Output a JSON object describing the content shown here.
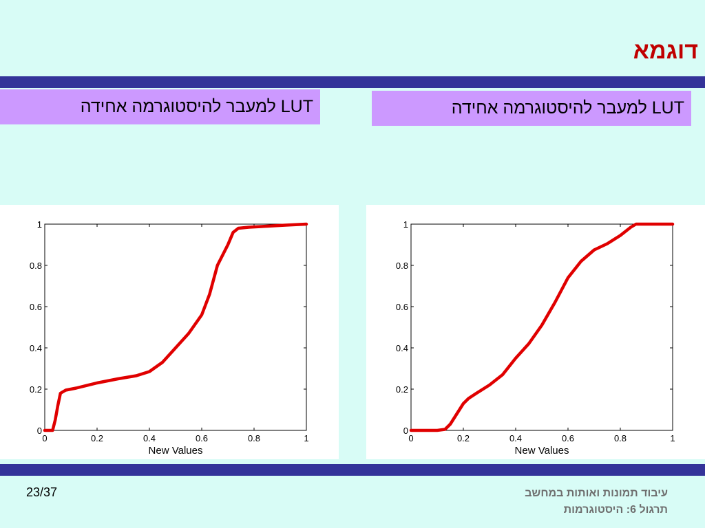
{
  "slide": {
    "title": "דוגמא",
    "page_number": "23/37",
    "footer_line1": "עיבוד תמונות ואותות במחשב",
    "footer_line2": "תרגול 6: היסטוגרמות"
  },
  "labels": {
    "left": "LUT למעבר להיסטוגרמה אחידה",
    "right": "LUT למעבר להיסטוגרמה אחידה"
  },
  "colors": {
    "background": "#d8fcf6",
    "bars": "#333399",
    "title": "#c00000",
    "label_box": "#cc99ff",
    "curve": "#e00000"
  },
  "chart_data": [
    {
      "type": "line",
      "xlabel": "New Values",
      "xlim": [
        0,
        1
      ],
      "ylim": [
        0,
        1
      ],
      "xticks": [
        "0",
        "0.2",
        "0.4",
        "0.6",
        "0.8",
        "1"
      ],
      "yticks": [
        "0",
        "0.2",
        "0.4",
        "0.6",
        "0.8",
        "1"
      ],
      "series": [
        {
          "x": [
            0,
            0.01,
            0.03,
            0.04,
            0.05,
            0.06,
            0.08,
            0.12,
            0.2,
            0.28,
            0.35,
            0.4,
            0.45,
            0.5,
            0.55,
            0.6,
            0.63,
            0.66,
            0.7,
            0.72,
            0.74,
            0.78,
            0.85,
            0.92,
            1.0
          ],
          "y": [
            0,
            0,
            0,
            0.05,
            0.12,
            0.18,
            0.195,
            0.205,
            0.23,
            0.25,
            0.265,
            0.285,
            0.33,
            0.4,
            0.47,
            0.56,
            0.66,
            0.8,
            0.9,
            0.96,
            0.98,
            0.985,
            0.99,
            0.995,
            1.0
          ]
        }
      ]
    },
    {
      "type": "line",
      "xlabel": "New Values",
      "xlim": [
        0,
        1
      ],
      "ylim": [
        0,
        1
      ],
      "xticks": [
        "0",
        "0.2",
        "0.4",
        "0.6",
        "0.8",
        "1"
      ],
      "yticks": [
        "0",
        "0.2",
        "0.4",
        "0.6",
        "0.8",
        "1"
      ],
      "series": [
        {
          "x": [
            0,
            0.1,
            0.13,
            0.15,
            0.18,
            0.2,
            0.22,
            0.25,
            0.3,
            0.35,
            0.4,
            0.45,
            0.5,
            0.55,
            0.6,
            0.65,
            0.7,
            0.75,
            0.8,
            0.84,
            0.86,
            0.9,
            1.0
          ],
          "y": [
            0,
            0,
            0.005,
            0.03,
            0.09,
            0.13,
            0.155,
            0.18,
            0.22,
            0.27,
            0.35,
            0.42,
            0.51,
            0.62,
            0.74,
            0.82,
            0.875,
            0.905,
            0.945,
            0.985,
            1.0,
            1.0,
            1.0
          ]
        }
      ]
    }
  ]
}
